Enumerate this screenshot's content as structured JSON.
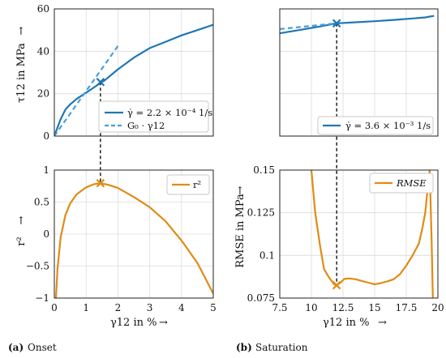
{
  "colors": {
    "blue": "#1f77b4",
    "blue_dash": "#4d9ed6",
    "orange": "#e08b16",
    "dark": "#222222"
  },
  "chart_data": [
    {
      "id": "onset_stress",
      "type": "line",
      "xlim": [
        0,
        5
      ],
      "ylim": [
        0,
        60
      ],
      "xticks": [],
      "yticks": [
        0,
        20,
        40,
        60
      ],
      "ylabel": "τ12 in MPa",
      "ylabel_arrow": "→",
      "grid": true,
      "legend_position": "lower-right",
      "series": [
        {
          "name": "γ̇ = 2.2 × 10⁻⁴ 1/s",
          "style": "solid",
          "color": "#1f77b4",
          "x": [
            0,
            0.1,
            0.2,
            0.35,
            0.5,
            0.7,
            1.0,
            1.3,
            1.6,
            2.0,
            2.5,
            3.0,
            3.5,
            4.0,
            4.5,
            5.0
          ],
          "y": [
            0,
            4,
            8,
            12.5,
            15,
            17.5,
            20.5,
            23.5,
            26.5,
            31.5,
            37,
            41.5,
            44.5,
            47.5,
            50,
            52.5
          ]
        },
        {
          "name": "G₀ · γ12",
          "style": "dashed",
          "color": "#4d9ed6",
          "x": [
            0,
            2.0
          ],
          "y": [
            0,
            42.5
          ]
        }
      ],
      "markers": [
        {
          "x": 1.45,
          "y": 25.5,
          "color": "#1f77b4"
        }
      ]
    },
    {
      "id": "onset_r2",
      "type": "line",
      "xlim": [
        0,
        5
      ],
      "ylim": [
        -1,
        1
      ],
      "xticks": [
        0,
        1,
        2,
        3,
        4,
        5
      ],
      "yticks": [
        -1,
        -0.5,
        0,
        0.5,
        1
      ],
      "yticklabels": [
        "−1",
        "−0.5",
        "0",
        "0.5",
        "1"
      ],
      "xlabel": "γ12 in %",
      "xlabel_arrow": "→",
      "ylabel": "r²",
      "ylabel_arrow": "→",
      "grid": true,
      "legend_position": "upper-right",
      "series": [
        {
          "name": "r²",
          "style": "solid",
          "color": "#e08b16",
          "x": [
            0.05,
            0.1,
            0.2,
            0.35,
            0.5,
            0.7,
            1.0,
            1.25,
            1.45,
            1.7,
            2.0,
            2.5,
            3.0,
            3.5,
            4.0,
            4.5,
            5.0
          ],
          "y": [
            -1.0,
            -0.55,
            -0.05,
            0.3,
            0.48,
            0.62,
            0.73,
            0.78,
            0.795,
            0.77,
            0.72,
            0.58,
            0.42,
            0.2,
            -0.1,
            -0.45,
            -0.93
          ]
        }
      ],
      "markers": [
        {
          "x": 1.45,
          "y": 0.795,
          "color": "#e08b16"
        }
      ]
    },
    {
      "id": "saturation_stress",
      "type": "line",
      "xlim": [
        7.5,
        20
      ],
      "ylim": [
        0,
        60
      ],
      "xticks": [],
      "yticks": [],
      "grid": true,
      "legend_position": "lower-right",
      "series": [
        {
          "name": "γ̇ = 3.6 × 10⁻³ 1/s",
          "style": "solid",
          "color": "#1f77b4",
          "x": [
            7.5,
            9,
            10.5,
            12,
            13.5,
            15,
            16.5,
            18,
            19,
            19.7
          ],
          "y": [
            48.5,
            50,
            51.5,
            53.2,
            53.7,
            54.2,
            54.8,
            55.5,
            56,
            56.7
          ]
        },
        {
          "name": "",
          "style": "dashed",
          "color": "#4d9ed6",
          "x": [
            7.5,
            12
          ],
          "y": [
            50.5,
            53.2
          ]
        }
      ],
      "markers": [
        {
          "x": 12,
          "y": 53.2,
          "color": "#1f77b4"
        }
      ]
    },
    {
      "id": "saturation_rmse",
      "type": "line",
      "xlim": [
        7.5,
        20
      ],
      "ylim": [
        0.075,
        0.15
      ],
      "xticks": [
        7.5,
        10,
        12.5,
        15,
        17.5,
        20
      ],
      "xticklabels": [
        "7.5",
        "10",
        "12.5",
        "15",
        "17.5",
        "20"
      ],
      "yticks": [
        0.075,
        0.1,
        0.125,
        0.15
      ],
      "yticklabels": [
        "0.075",
        "0.1",
        "0.125",
        "0.15"
      ],
      "xlabel": "γ12 in %",
      "xlabel_arrow": "→",
      "ylabel": "RMSE in MPa",
      "ylabel_arrow": "→",
      "grid": true,
      "legend_position": "upper-right",
      "series": [
        {
          "name": "RMSE",
          "style": "solid",
          "color": "#e08b16",
          "x": [
            10,
            10.3,
            10.7,
            11.0,
            11.4,
            11.8,
            12.0,
            12.3,
            12.6,
            13.0,
            13.5,
            14.0,
            14.5,
            15.0,
            15.5,
            16.0,
            16.5,
            17.0,
            17.5,
            18.0,
            18.5,
            18.8,
            19.0,
            19.2,
            19.35,
            19.5,
            19.6
          ],
          "y": [
            0.15,
            0.125,
            0.105,
            0.092,
            0.087,
            0.083,
            0.0825,
            0.084,
            0.0862,
            0.0865,
            0.086,
            0.085,
            0.084,
            0.083,
            0.0838,
            0.0848,
            0.086,
            0.089,
            0.094,
            0.1,
            0.107,
            0.117,
            0.125,
            0.14,
            0.15,
            0.11,
            0.075
          ]
        }
      ],
      "markers": [
        {
          "x": 12,
          "y": 0.0825,
          "color": "#e08b16"
        }
      ]
    }
  ],
  "captions": {
    "a_tag": "(a)",
    "a_text": "Onset",
    "b_tag": "(b)",
    "b_text": "Saturation"
  }
}
